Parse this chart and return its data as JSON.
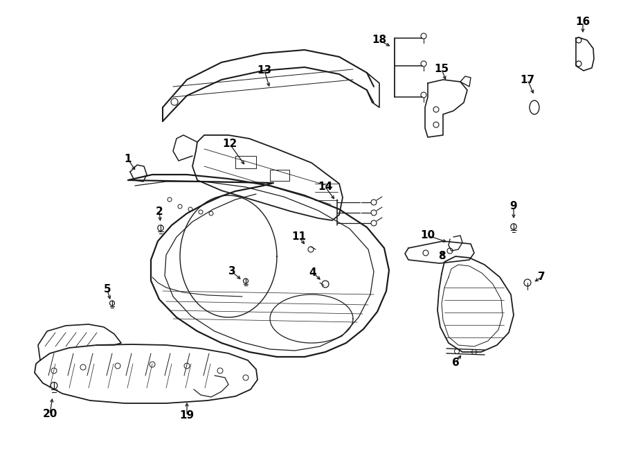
{
  "background_color": "#ffffff",
  "line_color": "#1a1a1a",
  "text_color": "#000000",
  "fig_width": 9.0,
  "fig_height": 6.61,
  "dpi": 100
}
